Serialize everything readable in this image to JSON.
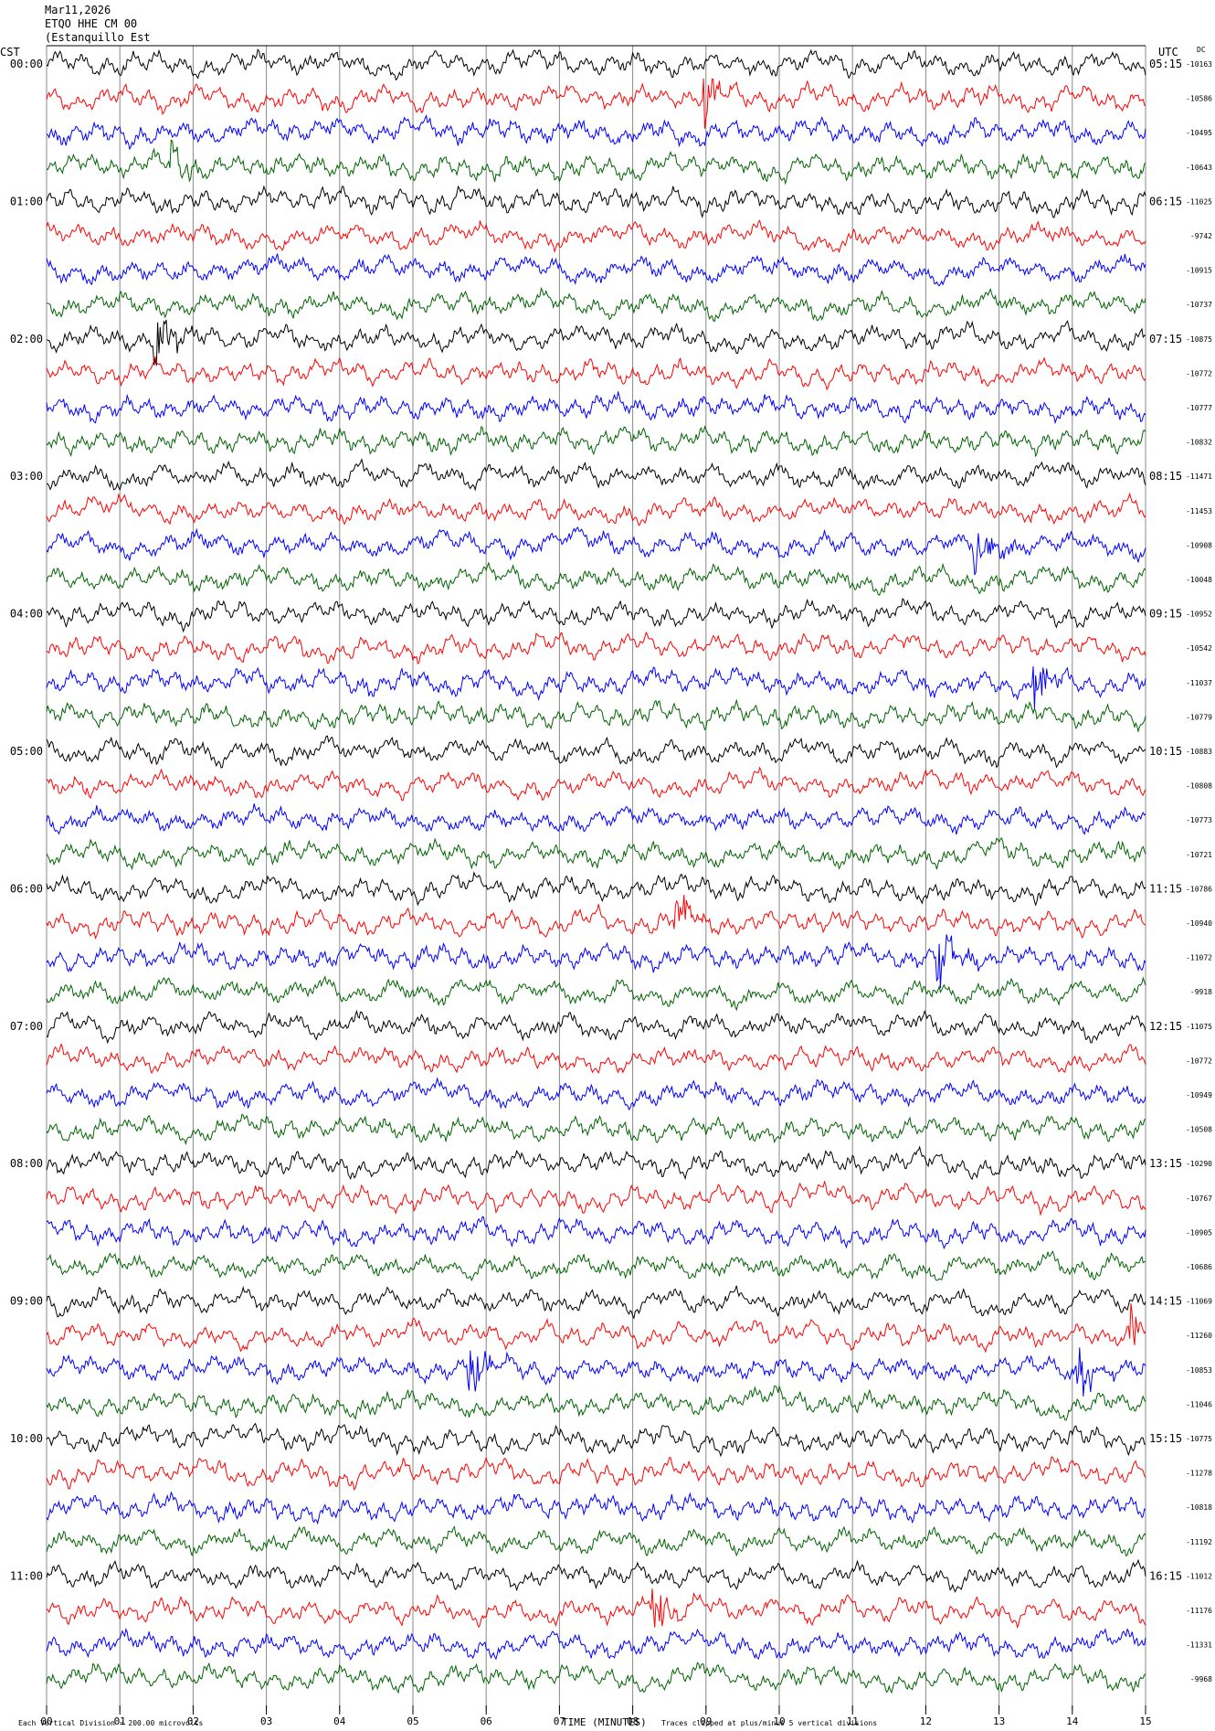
{
  "header": {
    "date": "Mar11,2026",
    "channel": "ETQO HHE CM 00",
    "station": "(Estanquillo Est"
  },
  "corner_labels": {
    "left_tz": "CST",
    "right_tz": "UTC",
    "dc": "DC"
  },
  "footer": {
    "scale_note": "Each Vertical Division =  200.00 microvolts",
    "xaxis_title": "TIME (MINUTES)",
    "clip_note": "Traces clipped at plus/minus 5 vertical divisions"
  },
  "colors": {
    "cycle": [
      "#000000",
      "#ff0000",
      "#0000ff",
      "#006400"
    ],
    "grid": "#888888"
  },
  "chart_data": {
    "type": "line",
    "title": "",
    "xlabel": "TIME (MINUTES)",
    "xticks": [
      "00",
      "01",
      "02",
      "03",
      "04",
      "05",
      "06",
      "07",
      "08",
      "09",
      "10",
      "11",
      "12",
      "13",
      "14",
      "15"
    ],
    "xlim": [
      0,
      15
    ],
    "left_time_labels": [
      "00:00",
      "01:00",
      "02:00",
      "03:00",
      "04:00",
      "05:00",
      "06:00",
      "07:00",
      "08:00",
      "09:00",
      "10:00",
      "11:00"
    ],
    "right_time_labels": [
      "05:15",
      "06:15",
      "07:15",
      "08:15",
      "09:15",
      "10:15",
      "11:15",
      "12:15",
      "13:15",
      "14:15",
      "15:15",
      "16:15"
    ],
    "dc_offsets": [
      "-10163",
      "-10586",
      "-10495",
      "-10643",
      "-11025",
      "-9742",
      "-10915",
      "-10737",
      "-10875",
      "-10772",
      "-10777",
      "-10832",
      "-11471",
      "-11453",
      "-10908",
      "-10048",
      "-10952",
      "-10542",
      "-11037",
      "-10779",
      "-10883",
      "-10808",
      "-10773",
      "-10721",
      "-10786",
      "-10940",
      "-11072",
      "-9918",
      "-11075",
      "-10772",
      "-10949",
      "-10508",
      "-10290",
      "-10767",
      "-10905",
      "-10686",
      "-11069",
      "-11260",
      "-10853",
      "-11046",
      "-10775",
      "-11278",
      "-10818",
      "-11192",
      "-11012",
      "-11176",
      "-11331",
      "-9968"
    ],
    "events": [
      {
        "trace": 1,
        "minute": 9.0
      },
      {
        "trace": 3,
        "minute": 1.7
      },
      {
        "trace": 8,
        "minute": 1.5
      },
      {
        "trace": 14,
        "minute": 12.7
      },
      {
        "trace": 18,
        "minute": 13.5
      },
      {
        "trace": 25,
        "minute": 8.6
      },
      {
        "trace": 26,
        "minute": 12.2
      },
      {
        "trace": 37,
        "minute": 14.8
      },
      {
        "trace": 38,
        "minute": 5.8
      },
      {
        "trace": 38,
        "minute": 14.1
      },
      {
        "trace": 45,
        "minute": 8.3
      }
    ]
  }
}
